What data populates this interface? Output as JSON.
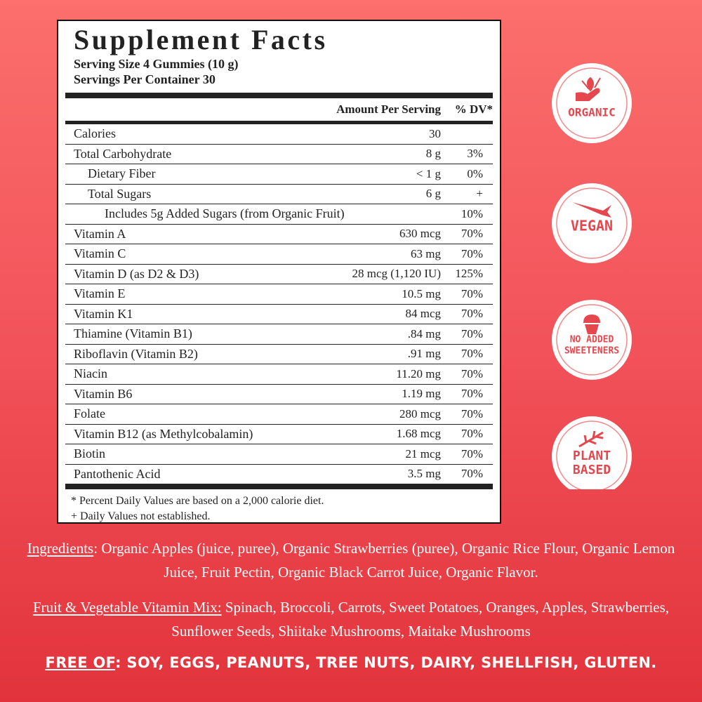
{
  "facts": {
    "title": "Supplement Facts",
    "serving_size": "Serving Size 4 Gummies (10 g)",
    "servings_per_container": "Servings Per Container 30",
    "header_amount": "Amount Per Serving",
    "header_dv": "% DV*",
    "rows": [
      {
        "name": "Calories",
        "amount": "30"
      },
      {
        "name": "Total Carbohydrate",
        "amount": "8 g",
        "dv": "3%"
      },
      {
        "name": "Dietary Fiber",
        "amount": "< 1 g",
        "dv": "0%"
      },
      {
        "name": "Total Sugars",
        "amount": "6 g",
        "dv": "+"
      },
      {
        "name": "Includes 5g Added Sugars (from Organic Fruit)",
        "dv": "10%"
      },
      {
        "name": "Vitamin A",
        "amount": "630 mcg",
        "dv": "70%"
      },
      {
        "name": "Vitamin C",
        "amount": "63 mg",
        "dv": "70%"
      },
      {
        "name": "Vitamin D (as D2 & D3)",
        "amount": "28 mcg (1,120 IU)",
        "dv": "125%"
      },
      {
        "name": "Vitamin E",
        "amount": "10.5 mg",
        "dv": "70%"
      },
      {
        "name": "Vitamin K1",
        "amount": "84 mcg",
        "dv": "70%"
      },
      {
        "name": "Thiamine (Vitamin B1)",
        "amount": ".84 mg",
        "dv": "70%"
      },
      {
        "name": "Riboflavin (Vitamin B2)",
        "amount": ".91 mg",
        "dv": "70%"
      },
      {
        "name": "Niacin",
        "amount": "11.20 mg",
        "dv": "70%"
      },
      {
        "name": "Vitamin B6",
        "amount": "1.19 mg",
        "dv": "70%"
      },
      {
        "name": "Folate",
        "amount": "280 mcg",
        "dv": "70%"
      },
      {
        "name": "Vitamin B12 (as Methylcobalamin)",
        "amount": "1.68 mcg",
        "dv": "70%"
      },
      {
        "name": "Biotin",
        "amount": "21 mcg",
        "dv": "70%"
      },
      {
        "name": "Pantothenic Acid",
        "amount": "3.5 mg",
        "dv": "70%"
      }
    ],
    "footnotes": [
      "* Percent Daily Values are based on a 2,000 calorie diet.",
      "+ Daily Values not established."
    ]
  },
  "badges": [
    [
      "ORGANIC"
    ],
    [
      "VEGAN"
    ],
    [
      "NO ADDED",
      "SWEETENERS"
    ],
    [
      "PLANT",
      "BASED"
    ]
  ],
  "ingredients": {
    "label": "Ingredients",
    "text": ": Organic Apples (juice, puree), Organic Strawberries (puree),  Organic Rice Flour, Organic Lemon Juice, Fruit Pectin, Organic Black Carrot Juice, Organic Flavor."
  },
  "vitamin_mix": {
    "label": "Fruit & Vegetable Vitamin Mix:",
    "text": " Spinach, Broccoli, Carrots, Sweet Potatoes, Oranges, Apples, Strawberries, Sunflower Seeds, Shiitake Mushrooms, Maitake Mushrooms"
  },
  "free_of": {
    "label": "FREE OF",
    "text": ": SOY, EGGS, PEANUTS, TREE NUTS, DAIRY, SHELLFISH, GLUTEN."
  }
}
